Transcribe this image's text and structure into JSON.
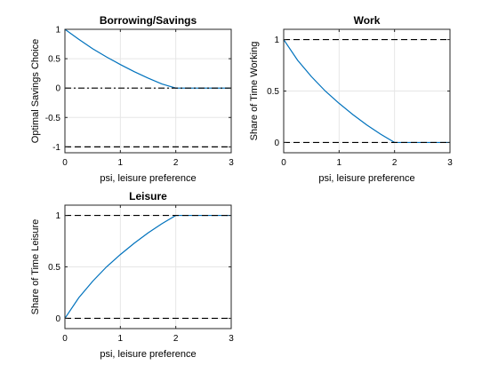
{
  "chart_data": [
    {
      "type": "line",
      "title": "Borrowing/Savings",
      "xlabel": "psi, leisure preference",
      "ylabel": "Optimal Savings Choice",
      "xlim": [
        0,
        3
      ],
      "ylim": [
        -1.1,
        1
      ],
      "xticks": [
        "0",
        "1",
        "2",
        "3"
      ],
      "yticks": [
        "-1",
        "-0.5",
        "0",
        "0.5",
        "1"
      ],
      "grid": true,
      "series": [
        {
          "style": "solid",
          "color": "#0072BD",
          "x": [
            0,
            0.25,
            0.5,
            0.75,
            1.0,
            1.25,
            1.5,
            1.75,
            2.0,
            2.5,
            3.0
          ],
          "y": [
            1.0,
            0.83,
            0.67,
            0.53,
            0.4,
            0.28,
            0.17,
            0.07,
            0.0,
            0.0,
            0.0
          ]
        },
        {
          "style": "dashdot",
          "color": "#000000",
          "x": [
            0,
            3
          ],
          "y": [
            0,
            0
          ]
        },
        {
          "style": "dashed",
          "color": "#000000",
          "x": [
            0,
            3
          ],
          "y": [
            -1,
            -1
          ]
        }
      ]
    },
    {
      "type": "line",
      "title": "Work",
      "xlabel": "psi, leisure preference",
      "ylabel": "Share of Time Working",
      "xlim": [
        0,
        3
      ],
      "ylim": [
        -0.1,
        1.1
      ],
      "xticks": [
        "0",
        "1",
        "2",
        "3"
      ],
      "yticks": [
        "0",
        "0.5",
        "1"
      ],
      "grid": true,
      "series": [
        {
          "style": "solid",
          "color": "#0072BD",
          "x": [
            0,
            0.25,
            0.5,
            0.75,
            1.0,
            1.25,
            1.5,
            1.75,
            2.0,
            2.5,
            3.0
          ],
          "y": [
            1.0,
            0.8,
            0.64,
            0.5,
            0.38,
            0.27,
            0.17,
            0.08,
            0.0,
            0.0,
            0.0
          ]
        },
        {
          "style": "dashed",
          "color": "#000000",
          "x": [
            0,
            3
          ],
          "y": [
            1,
            1
          ]
        },
        {
          "style": "dashed",
          "color": "#000000",
          "x": [
            0,
            3
          ],
          "y": [
            0,
            0
          ]
        }
      ]
    },
    {
      "type": "line",
      "title": "Leisure",
      "xlabel": "psi, leisure preference",
      "ylabel": "Share of Time Leisure",
      "xlim": [
        0,
        3
      ],
      "ylim": [
        -0.1,
        1.1
      ],
      "xticks": [
        "0",
        "1",
        "2",
        "3"
      ],
      "yticks": [
        "0",
        "0.5",
        "1"
      ],
      "grid": true,
      "series": [
        {
          "style": "solid",
          "color": "#0072BD",
          "x": [
            0,
            0.25,
            0.5,
            0.75,
            1.0,
            1.25,
            1.5,
            1.75,
            2.0,
            2.5,
            3.0
          ],
          "y": [
            0.0,
            0.2,
            0.36,
            0.5,
            0.62,
            0.73,
            0.83,
            0.92,
            1.0,
            1.0,
            1.0
          ]
        },
        {
          "style": "dashed",
          "color": "#000000",
          "x": [
            0,
            3
          ],
          "y": [
            1,
            1
          ]
        },
        {
          "style": "dashed",
          "color": "#000000",
          "x": [
            0,
            3
          ],
          "y": [
            0,
            0
          ]
        }
      ]
    }
  ]
}
